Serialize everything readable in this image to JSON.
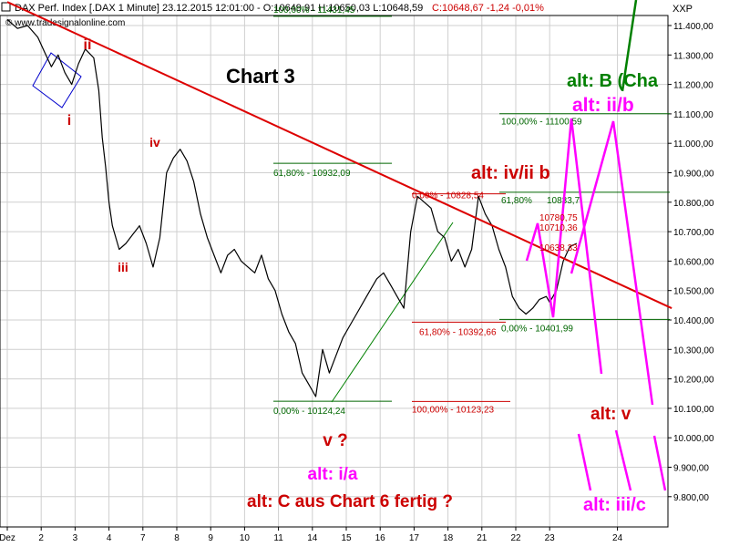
{
  "header": {
    "title": "DAX Perf. Index [.DAX  1 Minute] 23.12.2015 12:01:00 - O:10649,91 H:10650,03 L:10648,59",
    "change": "C:10648,67 -1,24 -0,01%"
  },
  "chart_data": {
    "type": "line",
    "title": "Chart 3",
    "watermark": "© www.tradesignalonline.com",
    "y_axis_label": "XXP",
    "ylim": [
      9700,
      11510
    ],
    "y_ticks": [
      "11.400,00",
      "11.300,00",
      "11.200,00",
      "11.100,00",
      "11.000,00",
      "10.900,00",
      "10.800,00",
      "10.700,00",
      "10.600,00",
      "10.500,00",
      "10.400,00",
      "10.300,00",
      "10.200,00",
      "10.100,00",
      "10.000,00",
      "9.900,00",
      "9.800,00"
    ],
    "y_tick_values": [
      11400,
      11300,
      11200,
      11100,
      11000,
      10900,
      10800,
      10700,
      10600,
      10500,
      10400,
      10300,
      10200,
      10100,
      10000,
      9900,
      9800
    ],
    "x_ticks": [
      "Dez",
      "2",
      "3",
      "4",
      "7",
      "8",
      "9",
      "10",
      "11",
      "14",
      "15",
      "16",
      "17",
      "18",
      "21",
      "22",
      "23",
      "24"
    ],
    "x_tick_session": [
      0,
      1,
      2,
      3,
      4,
      5,
      6,
      7,
      8,
      9,
      10,
      11,
      12,
      13,
      14,
      15,
      16,
      18
    ],
    "xlim": [
      0,
      19.6
    ],
    "series": [
      {
        "color": "#000000",
        "x": [
          0,
          0.3,
          0.6,
          0.9,
          1.1,
          1.3,
          1.5,
          1.7,
          1.9,
          2.1,
          2.3,
          2.55,
          2.7,
          2.8,
          2.9,
          3.0,
          3.1,
          3.3,
          3.5,
          3.7,
          3.9,
          4.1,
          4.3,
          4.5,
          4.7,
          4.9,
          5.1,
          5.3,
          5.5,
          5.7,
          5.9,
          6.1,
          6.3,
          6.5,
          6.7,
          6.9,
          7.1,
          7.3,
          7.5,
          7.7,
          7.9,
          8.1,
          8.3,
          8.5,
          8.7,
          8.9,
          9.1,
          9.3,
          9.5,
          9.7,
          9.9,
          10.1,
          10.3,
          10.5,
          10.7,
          10.9,
          11.1,
          11.3,
          11.5,
          11.7,
          11.9,
          12.0,
          12.1,
          12.3,
          12.5,
          12.7,
          12.9,
          13.1,
          13.3,
          13.5,
          13.7,
          13.9,
          14.1,
          14.3,
          14.5,
          14.7,
          14.9,
          15.1,
          15.3,
          15.5,
          15.7,
          15.9,
          16.0
        ],
        "y": [
          11420,
          11390,
          11400,
          11360,
          11310,
          11260,
          11300,
          11240,
          11200,
          11270,
          11320,
          11290,
          11180,
          11020,
          10920,
          10800,
          10720,
          10640,
          10660,
          10690,
          10720,
          10660,
          10580,
          10680,
          10900,
          10950,
          10980,
          10940,
          10870,
          10760,
          10680,
          10620,
          10560,
          10620,
          10640,
          10600,
          10580,
          10560,
          10620,
          10540,
          10500,
          10420,
          10360,
          10320,
          10220,
          10180,
          10140,
          10300,
          10220,
          10280,
          10340,
          10380,
          10420,
          10460,
          10500,
          10540,
          10560,
          10520,
          10480,
          10440,
          10700,
          10760,
          10820,
          10800,
          10780,
          10700,
          10680,
          10600,
          10640,
          10580,
          10640,
          10820,
          10760,
          10720,
          10640,
          10580,
          10480,
          10440,
          10420,
          10440,
          10470,
          10480,
          10460
        ]
      },
      {
        "color": "#000000",
        "x": [
          16.0,
          16.2,
          16.4,
          16.6,
          16.8
        ],
        "y": [
          10460,
          10500,
          10600,
          10650,
          10660
        ]
      }
    ],
    "price_marks": [
      "10780,75",
      "10710,36",
      "10638,33"
    ],
    "fib_levels": [
      {
        "label": "100,00% - 11431,45",
        "value": 11431.45,
        "color": "#006600"
      },
      {
        "label": "61,80% - 10932,09",
        "value": 10932.09,
        "color": "#006600"
      },
      {
        "label": "0,00% - 10124,24",
        "value": 10124.24,
        "color": "#006600"
      },
      {
        "label": "0,00% - 10828,54",
        "value": 10828.54,
        "color": "#cc0000"
      },
      {
        "label": "61,80% - 10392,66",
        "value": 10392.66,
        "color": "#cc0000"
      },
      {
        "label": "100,00% - 10123,23",
        "value": 10123.23,
        "color": "#cc0000"
      },
      {
        "label": "100,00% - 11100,59",
        "value": 11100.59,
        "color": "#006600"
      },
      {
        "label": "61,80%",
        "value": 10833.7,
        "color": "#006600"
      },
      {
        "label": "10833,7",
        "value": 10833.7,
        "color": "#006600"
      },
      {
        "label": "0,00% - 10401,99",
        "value": 10401.99,
        "color": "#006600"
      }
    ],
    "annotations": [
      {
        "text": "ii",
        "color": "#cc0000"
      },
      {
        "text": "i",
        "color": "#cc0000"
      },
      {
        "text": "iv",
        "color": "#cc0000"
      },
      {
        "text": "iii",
        "color": "#cc0000"
      },
      {
        "text": "v ?",
        "color": "#cc0000"
      },
      {
        "text": "alt: i/a",
        "color": "#ff00ff"
      },
      {
        "text": "alt: C aus Chart 6 fertig ?",
        "color": "#cc0000"
      },
      {
        "text": "alt: iv/ii  b",
        "color": "#cc0000"
      },
      {
        "text": "alt: B (Cha",
        "color": "#008000"
      },
      {
        "text": "alt: ii/b",
        "color": "#ff00ff"
      },
      {
        "text": "alt: v",
        "color": "#cc0000"
      },
      {
        "text": "alt: iii/c",
        "color": "#ff00ff"
      }
    ],
    "trendline": {
      "x": [
        0,
        19.6
      ],
      "y": [
        11480,
        10440
      ],
      "color": "#dd0000"
    },
    "grid": true,
    "legend": "none"
  }
}
